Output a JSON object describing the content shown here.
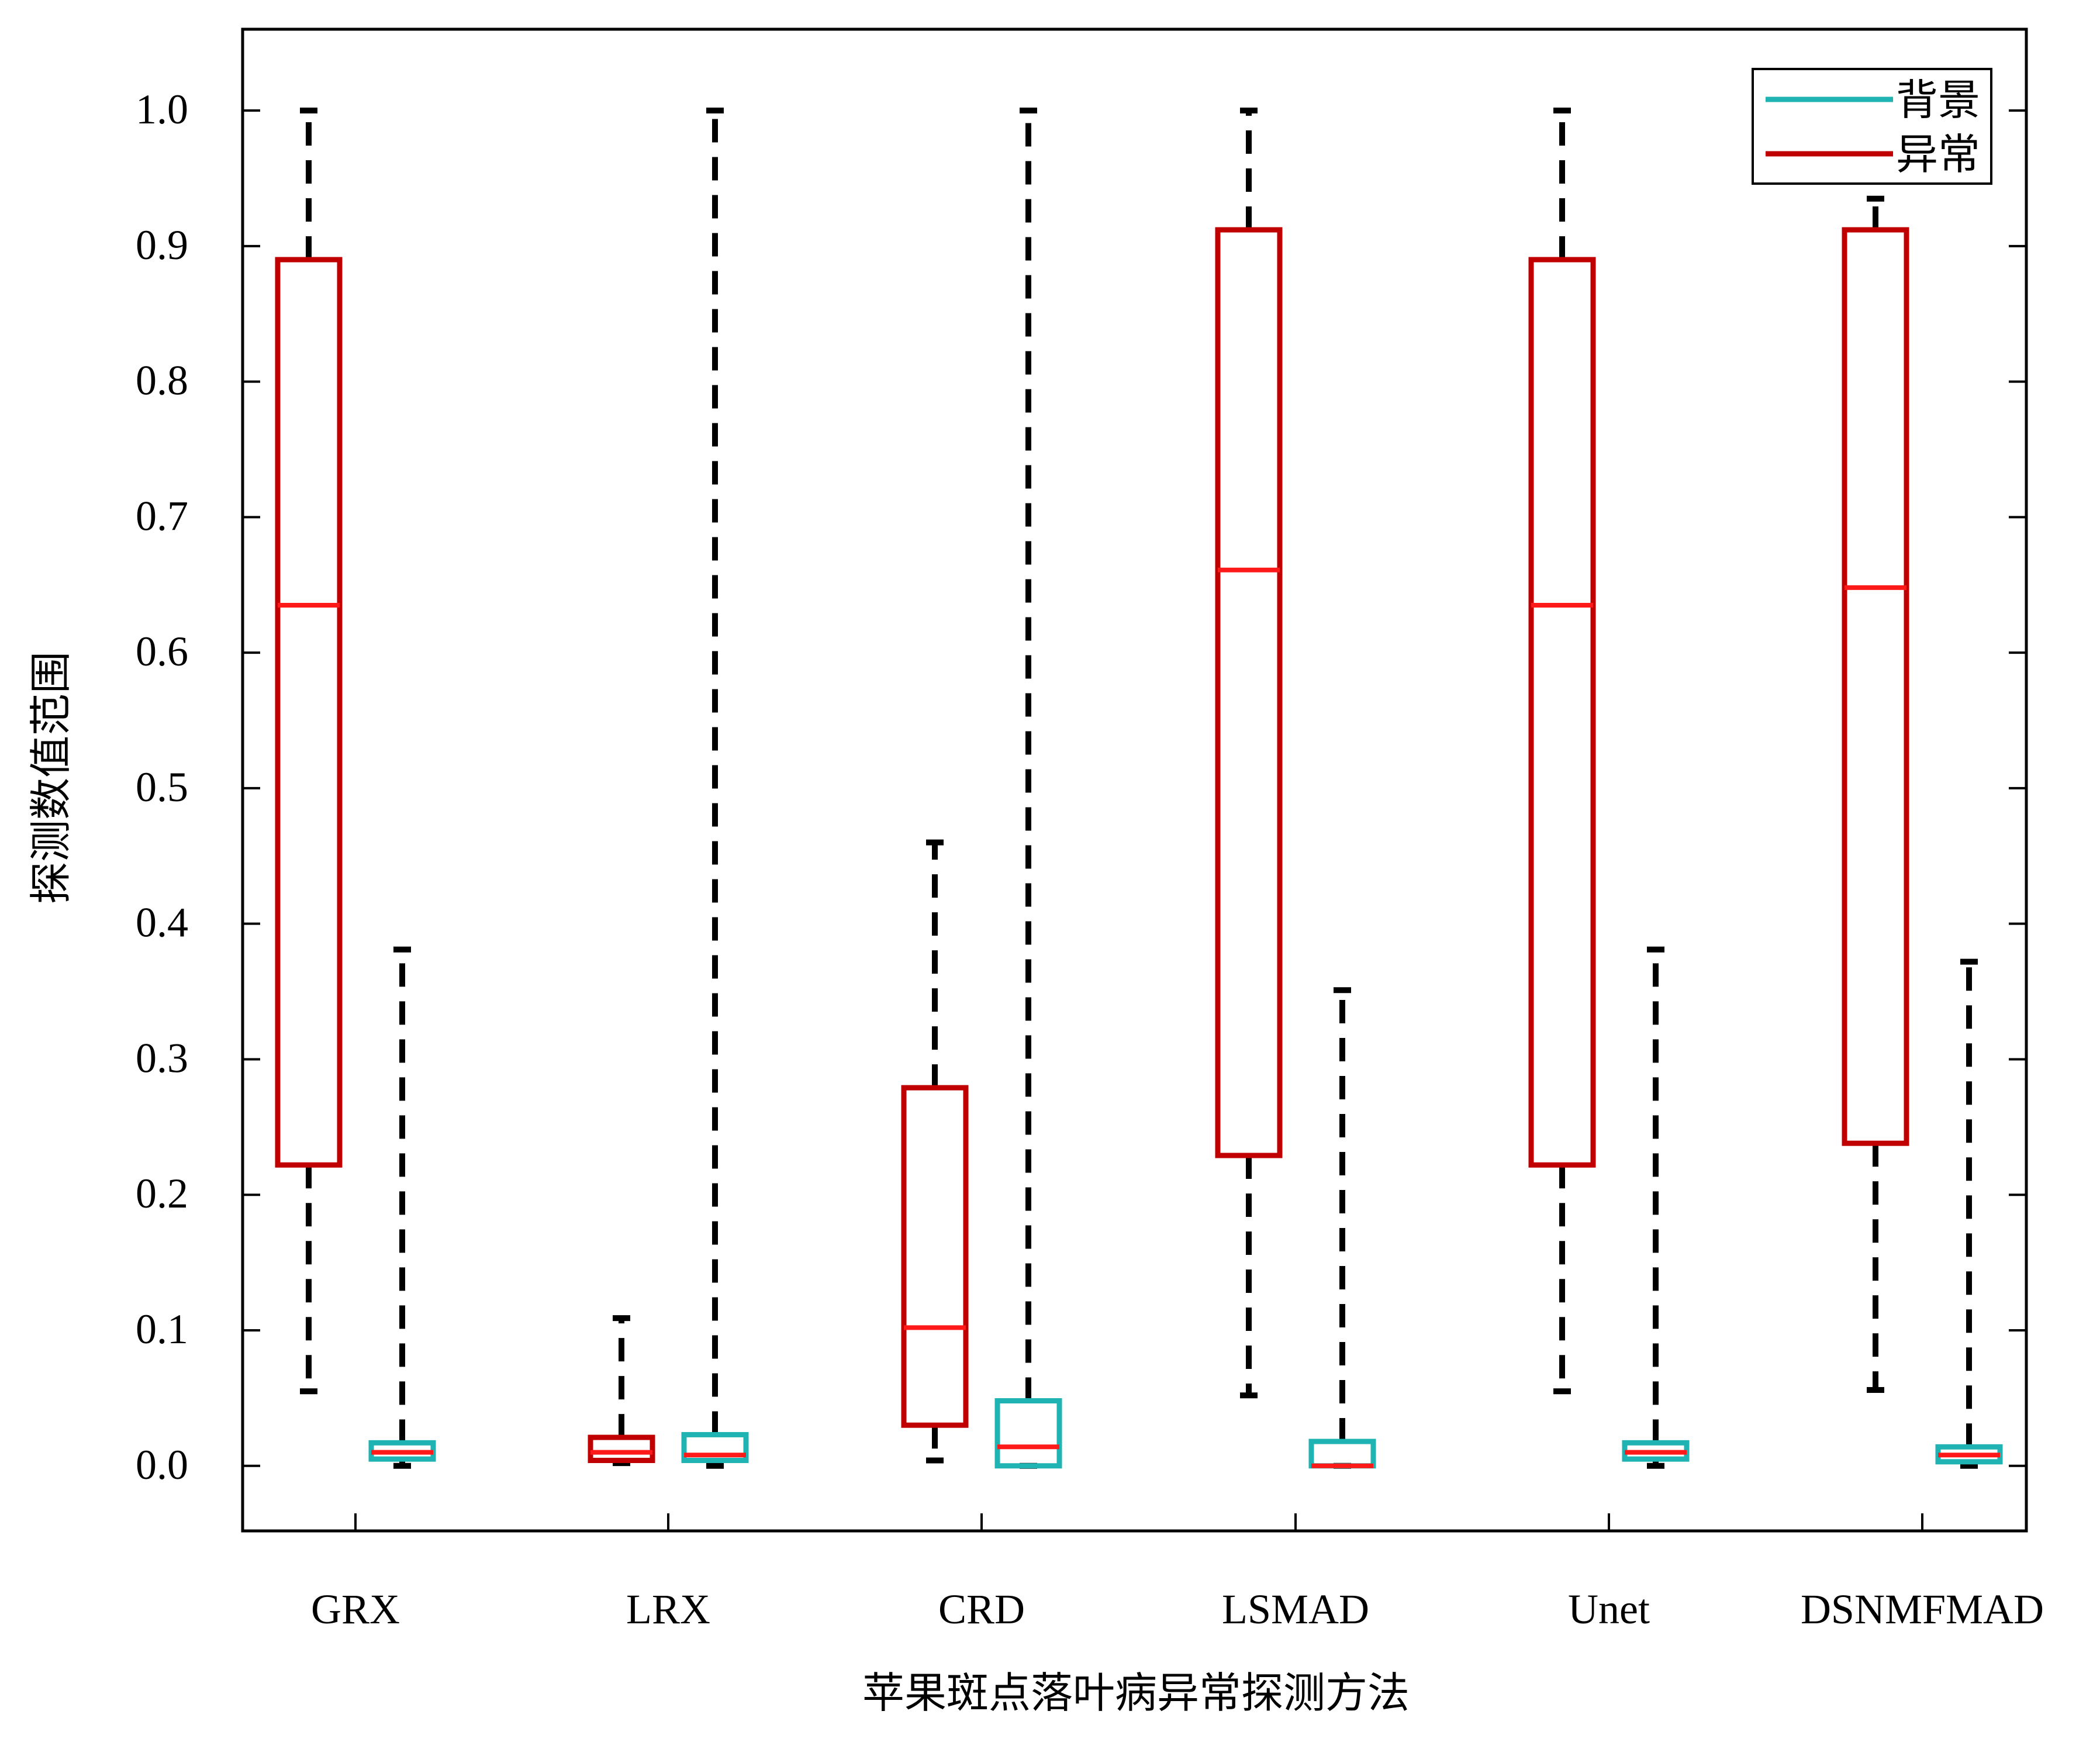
{
  "chart_data": {
    "type": "boxplot",
    "title": "",
    "xlabel": "苹果斑点落叶病异常探测方法",
    "ylabel": "探测数值范围",
    "ylim": [
      -0.048,
      1.06
    ],
    "yticks": [
      0.0,
      0.1,
      0.2,
      0.3,
      0.4,
      0.5,
      0.6,
      0.7,
      0.8,
      0.9,
      1.0
    ],
    "ytick_labels": [
      "0.0",
      "0.1",
      "0.2",
      "0.3",
      "0.4",
      "0.5",
      "0.6",
      "0.7",
      "0.8",
      "0.9",
      "1.0"
    ],
    "grid": false,
    "legend_position": "top-right",
    "categories": [
      "GRX",
      "LRX",
      "CRD",
      "LSMAD",
      "Unet",
      "DSNMFMAD"
    ],
    "series": [
      {
        "name": "异常",
        "color": "#c00000",
        "median_color": "#ff1a1a",
        "boxes": [
          {
            "whisker_low": 0.055,
            "q1": 0.222,
            "median": 0.635,
            "q3": 0.89,
            "whisker_high": 1.0
          },
          {
            "whisker_low": 0.002,
            "q1": 0.004,
            "median": 0.01,
            "q3": 0.021,
            "whisker_high": 0.109
          },
          {
            "whisker_low": 0.004,
            "q1": 0.03,
            "median": 0.102,
            "q3": 0.279,
            "whisker_high": 0.46
          },
          {
            "whisker_low": 0.052,
            "q1": 0.229,
            "median": 0.661,
            "q3": 0.912,
            "whisker_high": 1.0
          },
          {
            "whisker_low": 0.055,
            "q1": 0.222,
            "median": 0.635,
            "q3": 0.89,
            "whisker_high": 1.0
          },
          {
            "whisker_low": 0.056,
            "q1": 0.238,
            "median": 0.648,
            "q3": 0.912,
            "whisker_high": 0.935
          }
        ]
      },
      {
        "name": "背景",
        "color": "#1fb3b3",
        "median_color": "#ff1a1a",
        "boxes": [
          {
            "whisker_low": 0.0,
            "q1": 0.005,
            "median": 0.01,
            "q3": 0.017,
            "whisker_high": 0.381
          },
          {
            "whisker_low": 0.0,
            "q1": 0.004,
            "median": 0.008,
            "q3": 0.023,
            "whisker_high": 1.0
          },
          {
            "whisker_low": 0.0,
            "q1": 0.0,
            "median": 0.014,
            "q3": 0.048,
            "whisker_high": 1.0
          },
          {
            "whisker_low": 0.0,
            "q1": 0.0,
            "median": 0.0,
            "q3": 0.018,
            "whisker_high": 0.351
          },
          {
            "whisker_low": 0.0,
            "q1": 0.005,
            "median": 0.01,
            "q3": 0.017,
            "whisker_high": 0.381
          },
          {
            "whisker_low": 0.0,
            "q1": 0.003,
            "median": 0.008,
            "q3": 0.014,
            "whisker_high": 0.372
          }
        ]
      }
    ]
  }
}
